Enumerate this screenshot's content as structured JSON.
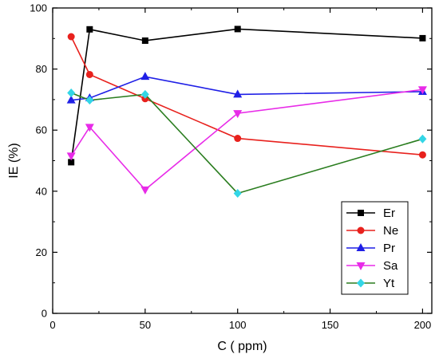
{
  "chart_data": {
    "type": "line",
    "xlabel": "C ( ppm)",
    "ylabel": "IE (%)",
    "xlim": [
      0,
      205
    ],
    "ylim": [
      0,
      100
    ],
    "xticks": [
      0,
      50,
      100,
      150,
      200
    ],
    "yticks": [
      0,
      20,
      40,
      60,
      80,
      100
    ],
    "x_minor_step": 25,
    "y_minor_step": 10,
    "grid": false,
    "legend_position": "lower-right",
    "series": [
      {
        "name": "Er",
        "color": "#000000",
        "marker": "square",
        "x": [
          10,
          20,
          50,
          100,
          200
        ],
        "y": [
          49.5,
          93,
          89.3,
          93.1,
          90.1
        ]
      },
      {
        "name": "Ne",
        "color": "#e8211d",
        "marker": "circle",
        "x": [
          10,
          20,
          50,
          100,
          200
        ],
        "y": [
          90.6,
          78.2,
          70.3,
          57.3,
          51.9
        ]
      },
      {
        "name": "Pr",
        "color": "#1f1fe6",
        "marker": "triangle-up",
        "x": [
          10,
          20,
          50,
          100,
          200
        ],
        "y": [
          69.8,
          70.5,
          77.5,
          71.7,
          72.6
        ]
      },
      {
        "name": "Sa",
        "color": "#e82be8",
        "marker": "triangle-down",
        "x": [
          10,
          20,
          50,
          100,
          200
        ],
        "y": [
          51.6,
          61.0,
          40.5,
          65.5,
          73.3
        ]
      },
      {
        "name": "Yt",
        "color": "#2a7d1f",
        "marker": "diamond",
        "marker_color": "#33d6e6",
        "x": [
          10,
          20,
          50,
          100,
          200
        ],
        "y": [
          72.2,
          69.8,
          71.7,
          39.3,
          57.1
        ]
      }
    ]
  }
}
